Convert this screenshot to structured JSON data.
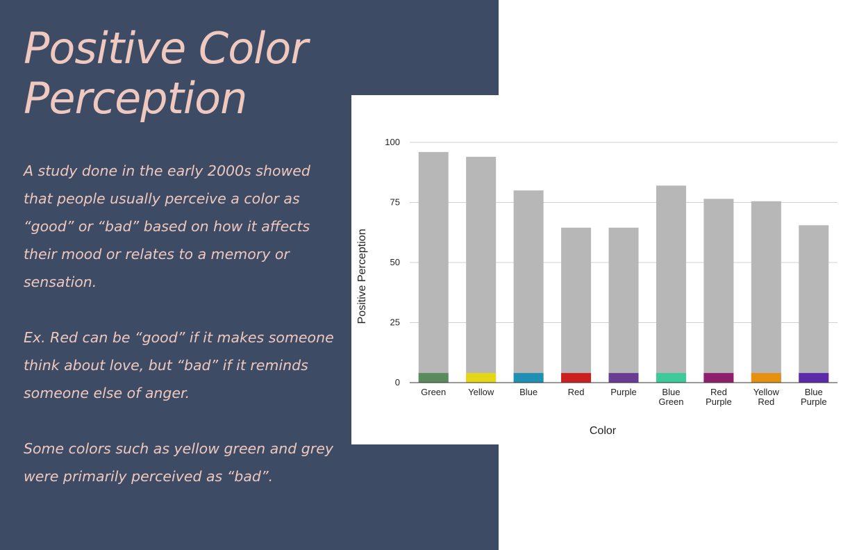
{
  "slide": {
    "title_line1": "Positive Color",
    "title_line2": "Perception",
    "paragraph1": "A study done in the early 2000s showed that people usually perceive a color as “good” or “bad” based on how it affects their mood or relates to a memory or sensation.",
    "paragraph2": "Ex. Red can be “good” if it makes someone think about love, but “bad” if it reminds someone else of anger.",
    "paragraph3": "Some colors such as yellow green and grey were primarily perceived as “bad”."
  },
  "colors": {
    "panel_background": "#3e4b64",
    "text": "#efc9bf",
    "bar_gray": "#b7b7b7"
  },
  "chart_data": {
    "type": "bar",
    "xlabel": "Color",
    "ylabel": "Positive Perception",
    "ylim": [
      0,
      100
    ],
    "yticks": [
      0,
      25,
      50,
      75,
      100
    ],
    "grid": true,
    "categories": [
      [
        "Green"
      ],
      [
        "Yellow"
      ],
      [
        "Blue"
      ],
      [
        "Red"
      ],
      [
        "Purple"
      ],
      [
        "Blue",
        "Green"
      ],
      [
        "Red",
        "Purple"
      ],
      [
        "Yellow",
        "Red"
      ],
      [
        "Blue",
        "Purple"
      ]
    ],
    "values": [
      96,
      94,
      80,
      64.5,
      64.5,
      82,
      76.5,
      75.5,
      65.5
    ],
    "base_band_value": 4,
    "band_colors": [
      "#5a8a5e",
      "#e5d616",
      "#1f8fb3",
      "#cc1f1f",
      "#6a3b93",
      "#3ec99a",
      "#8e1f6d",
      "#e5900f",
      "#5a2aa8"
    ]
  }
}
